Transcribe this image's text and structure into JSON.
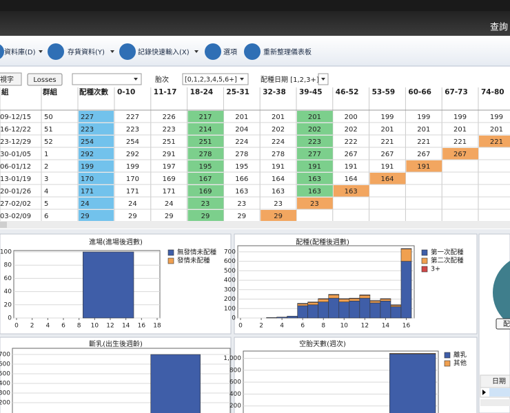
{
  "header": {
    "button": "查詢"
  },
  "toolbar": {
    "items": [
      "資料庫(D)",
      "存貨資料(Y)",
      "記錄快速輸入(X)",
      "選項",
      "重新整理儀表板"
    ]
  },
  "filters": {
    "tab": "視字",
    "losses": "Losses",
    "parity_label": "胎次",
    "parity_value": "[0,1,2,3,4,5,6+]",
    "date_label": "配種日期 [1,2,3+]"
  },
  "table": {
    "columns": [
      "組",
      "群組",
      "配種次數",
      "0-10",
      "11-17",
      "18-24",
      "25-31",
      "32-38",
      "39-45",
      "46-52",
      "53-59",
      "60-66",
      "67-73",
      "74-80"
    ],
    "rows": [
      {
        "period": "09-12/15",
        "group": 50,
        "breedings": 227,
        "cells": [
          227,
          226,
          217,
          201,
          201,
          201,
          200,
          199,
          199,
          199,
          199
        ]
      },
      {
        "period": "16-12/22",
        "group": 51,
        "breedings": 223,
        "cells": [
          223,
          223,
          214,
          204,
          202,
          202,
          202,
          201,
          201,
          201,
          201
        ]
      },
      {
        "period": "23-12/29",
        "group": 52,
        "breedings": 254,
        "cells": [
          254,
          251,
          251,
          224,
          224,
          223,
          222,
          221,
          221,
          221,
          221
        ]
      },
      {
        "period": "30-01/05",
        "group": 1,
        "breedings": 292,
        "cells": [
          292,
          291,
          278,
          278,
          278,
          277,
          267,
          267,
          267,
          267
        ]
      },
      {
        "period": "06-01/12",
        "group": 2,
        "breedings": 199,
        "cells": [
          199,
          197,
          195,
          195,
          191,
          191,
          191,
          191,
          191
        ]
      },
      {
        "period": "13-01/19",
        "group": 3,
        "breedings": 170,
        "cells": [
          170,
          169,
          167,
          166,
          164,
          163,
          164,
          164
        ]
      },
      {
        "period": "20-01/26",
        "group": 4,
        "breedings": 171,
        "cells": [
          171,
          171,
          169,
          163,
          163,
          163,
          163
        ]
      },
      {
        "period": "27-02/02",
        "group": 5,
        "breedings": 24,
        "cells": [
          24,
          24,
          23,
          23,
          23,
          23
        ]
      },
      {
        "period": "03-02/09",
        "group": 6,
        "breedings": 29,
        "cells": [
          29,
          29,
          29,
          29,
          29
        ]
      }
    ]
  },
  "chart_data": [
    {
      "type": "histogram",
      "title": "進場(進場後週數)",
      "bins": [
        8.5,
        15
      ],
      "series": [
        {
          "name": "無發情未配種",
          "color": "#3f5ea8",
          "values": [
            100
          ]
        },
        {
          "name": "發情未配種",
          "color": "#f0a050",
          "values": [
            0
          ]
        }
      ],
      "xlim": [
        0,
        18
      ],
      "xticks": [
        0,
        2,
        4,
        6,
        8,
        10,
        12,
        14,
        16,
        18
      ],
      "ylim": [
        0,
        100
      ],
      "yticks": [
        0,
        20,
        40,
        60,
        80,
        100
      ],
      "grid": true
    },
    {
      "type": "histogram",
      "title": "配種(配種後週數)",
      "bins": [
        2.5,
        3.5,
        4.5,
        5.5,
        6.5,
        7.5,
        8.5,
        9.5,
        10.5,
        11.5,
        12.5,
        13.5,
        14.5,
        15.5,
        16.5
      ],
      "series": [
        {
          "name": "第一次配種",
          "color": "#3f5ea8",
          "values": [
            5,
            10,
            20,
            130,
            140,
            170,
            210,
            170,
            180,
            210,
            160,
            180,
            120,
            600
          ]
        },
        {
          "name": "第二次配種",
          "color": "#f0a050",
          "values": [
            0,
            0,
            0,
            20,
            25,
            30,
            35,
            30,
            25,
            30,
            20,
            20,
            15,
            130
          ]
        },
        {
          "name": "3+",
          "color": "#d04848",
          "values": [
            0,
            0,
            0,
            5,
            5,
            5,
            5,
            5,
            5,
            5,
            5,
            5,
            5,
            5
          ]
        }
      ],
      "xlim": [
        0,
        16.5
      ],
      "xticks": [
        0,
        2,
        4,
        6,
        8,
        10,
        12,
        14,
        16
      ],
      "ylim": [
        0,
        750
      ],
      "yticks": [
        0,
        100,
        200,
        300,
        400,
        500,
        600,
        700
      ],
      "grid": true
    },
    {
      "type": "histogram",
      "title": "斷乳(出生後週齡)",
      "bins": [
        11.5,
        15.7
      ],
      "series": [
        {
          "color": "#3f5ea8",
          "values": [
            700
          ]
        }
      ],
      "xlim": [
        0,
        18
      ],
      "ylim": [
        0,
        750
      ],
      "yticks": [
        200,
        300,
        400,
        500,
        600,
        700
      ],
      "grid": true
    },
    {
      "type": "histogram",
      "title": "空胎天數(週次)",
      "bins": [
        12.5,
        16.5
      ],
      "series": [
        {
          "name": "離乳",
          "color": "#3f5ea8",
          "values": [
            1075
          ]
        },
        {
          "name": "其他",
          "color": "#f0a050",
          "values": [
            10
          ]
        }
      ],
      "xlim": [
        0,
        16.5
      ],
      "ylim": [
        0,
        1100
      ],
      "yticks": [
        200,
        400,
        600,
        800,
        {
          "value": 1000,
          "label": "1,000"
        }
      ],
      "grid": true
    }
  ],
  "side_panel": {
    "pie_label": "配",
    "grid_header": "日期"
  }
}
